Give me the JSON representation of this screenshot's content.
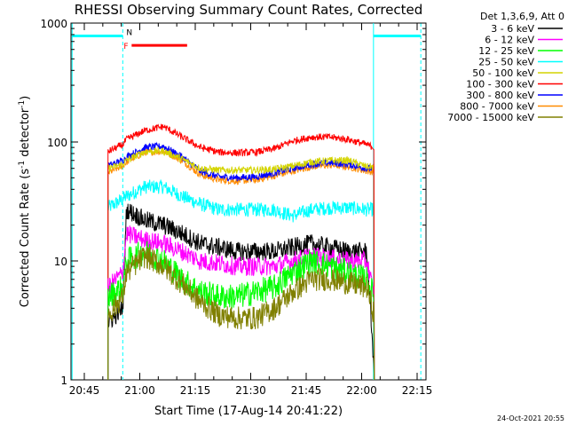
{
  "chart_data": {
    "type": "line",
    "title": "RHESSI Observing Summary Count Rates, Corrected",
    "xlabel": "Start Time (17-Aug-14 20:41:22)",
    "ylabel": "Corrected Count Rate (s⁻¹ detector⁻¹)",
    "ylabel_main": "Corrected Count Rate (s",
    "ylabel_exp1": "-1",
    "ylabel_mid": " detector",
    "ylabel_exp2": "-1",
    "ylabel_end": ")",
    "x_unit": "minutes after 20:41:22",
    "xlim": [
      0,
      96
    ],
    "ylim": [
      1,
      1000
    ],
    "y_scale": "log",
    "x_ticks": [
      {
        "label": "20:45",
        "value": 3.6
      },
      {
        "label": "21:00",
        "value": 18.6
      },
      {
        "label": "21:15",
        "value": 33.6
      },
      {
        "label": "21:30",
        "value": 48.6
      },
      {
        "label": "21:45",
        "value": 63.6
      },
      {
        "label": "22:00",
        "value": 78.6
      },
      {
        "label": "22:15",
        "value": 93.6
      }
    ],
    "y_ticks": [
      {
        "label": "1",
        "value": 1
      },
      {
        "label": "10",
        "value": 10
      },
      {
        "label": "100",
        "value": 100
      },
      {
        "label": "1000",
        "value": 1000
      }
    ],
    "legend_title": "Det 1,3,6,9, Att 0",
    "legend_position": "top-right outside",
    "bar_labels": {
      "N": "N",
      "F": "F"
    },
    "annotation_bars": [
      {
        "label_key": "N",
        "color": "#00ffff",
        "x0": 0.3,
        "x1": 14.0,
        "y": 780
      },
      {
        "label_key": "N",
        "color": "#00ffff",
        "x0": 81.8,
        "x1": 94.6,
        "y": 780
      },
      {
        "label_key": "F",
        "color": "#ff0000",
        "x0": 16.4,
        "x1": 31.4,
        "y": 650
      }
    ],
    "dashed_lines": [
      {
        "color": "#00ffff",
        "x": 14.0
      },
      {
        "color": "#00ffff",
        "x": 94.6
      }
    ],
    "night_period_x": [
      [
        0.3,
        14.0
      ],
      [
        81.8,
        94.6
      ]
    ],
    "footer_date": "24-Oct-2021 20:55",
    "series": [
      {
        "name": "3 - 6 keV",
        "color": "#000000",
        "x": [
          10,
          14,
          15,
          20,
          25,
          30,
          35,
          40,
          45,
          50,
          55,
          60,
          65,
          70,
          75,
          80,
          82
        ],
        "y": [
          3,
          4,
          27,
          22,
          20,
          17,
          14,
          13,
          12,
          12,
          12,
          13,
          14,
          13,
          12,
          12,
          1.2
        ]
      },
      {
        "name": "6 - 12 keV",
        "color": "#ff00ff",
        "x": [
          10,
          14,
          15,
          20,
          25,
          30,
          35,
          40,
          45,
          50,
          55,
          60,
          65,
          70,
          75,
          80,
          82
        ],
        "y": [
          6,
          8,
          17,
          15,
          14,
          12,
          10,
          9.5,
          9,
          9,
          9,
          10,
          11,
          10.5,
          10,
          10,
          5
        ]
      },
      {
        "name": "12 - 25 keV",
        "color": "#00ff00",
        "x": [
          10,
          14,
          15,
          20,
          25,
          30,
          35,
          40,
          45,
          50,
          55,
          60,
          65,
          70,
          75,
          80,
          82
        ],
        "y": [
          5,
          6,
          10,
          12,
          10,
          7,
          5.5,
          5,
          5,
          5.5,
          6,
          8,
          10,
          9,
          8,
          7,
          5
        ]
      },
      {
        "name": "25 - 50 keV",
        "color": "#00ffff",
        "x": [
          10,
          14,
          15,
          20,
          25,
          30,
          35,
          40,
          45,
          50,
          55,
          58,
          60,
          65,
          70,
          75,
          80,
          82
        ],
        "y": [
          28,
          33,
          35,
          42,
          42,
          35,
          30,
          27,
          27,
          27,
          27,
          25,
          24,
          27,
          28,
          28,
          27,
          27
        ]
      },
      {
        "name": "50 - 100 keV",
        "color": "#d4d400",
        "x": [
          10,
          14,
          15,
          20,
          25,
          30,
          35,
          40,
          45,
          50,
          55,
          60,
          65,
          70,
          75,
          80,
          82
        ],
        "y": [
          60,
          65,
          70,
          83,
          84,
          72,
          60,
          58,
          58,
          58,
          59,
          63,
          68,
          70,
          70,
          62,
          62
        ]
      },
      {
        "name": "100 - 300 keV",
        "color": "#ff0000",
        "x": [
          10,
          14,
          15,
          20,
          25,
          30,
          35,
          40,
          45,
          50,
          55,
          60,
          65,
          70,
          75,
          80,
          82
        ],
        "y": [
          83,
          95,
          105,
          125,
          135,
          110,
          90,
          82,
          81,
          82,
          88,
          102,
          110,
          110,
          105,
          95,
          90
        ]
      },
      {
        "name": "300 - 800 keV",
        "color": "#0000ff",
        "x": [
          10,
          14,
          15,
          20,
          25,
          30,
          35,
          40,
          45,
          50,
          55,
          60,
          65,
          70,
          75,
          80,
          82
        ],
        "y": [
          63,
          70,
          75,
          90,
          92,
          75,
          57,
          51,
          50,
          51,
          55,
          60,
          65,
          67,
          65,
          60,
          60
        ]
      },
      {
        "name": "800 - 7000 keV",
        "color": "#ff8c00",
        "x": [
          10,
          14,
          15,
          20,
          25,
          30,
          35,
          40,
          45,
          50,
          55,
          60,
          65,
          70,
          75,
          80,
          82
        ],
        "y": [
          55,
          63,
          68,
          82,
          84,
          70,
          53,
          48,
          47,
          48,
          52,
          57,
          62,
          64,
          62,
          57,
          56
        ]
      },
      {
        "name": "7000 - 15000 keV",
        "color": "#808000",
        "x": [
          10,
          14,
          15,
          20,
          25,
          30,
          35,
          40,
          45,
          50,
          55,
          60,
          65,
          70,
          75,
          80,
          82
        ],
        "y": [
          3.5,
          5,
          8,
          11,
          9,
          6.5,
          4.5,
          3.5,
          3.3,
          3.3,
          4,
          5.5,
          7,
          7,
          6.5,
          6,
          3.5
        ]
      }
    ]
  }
}
